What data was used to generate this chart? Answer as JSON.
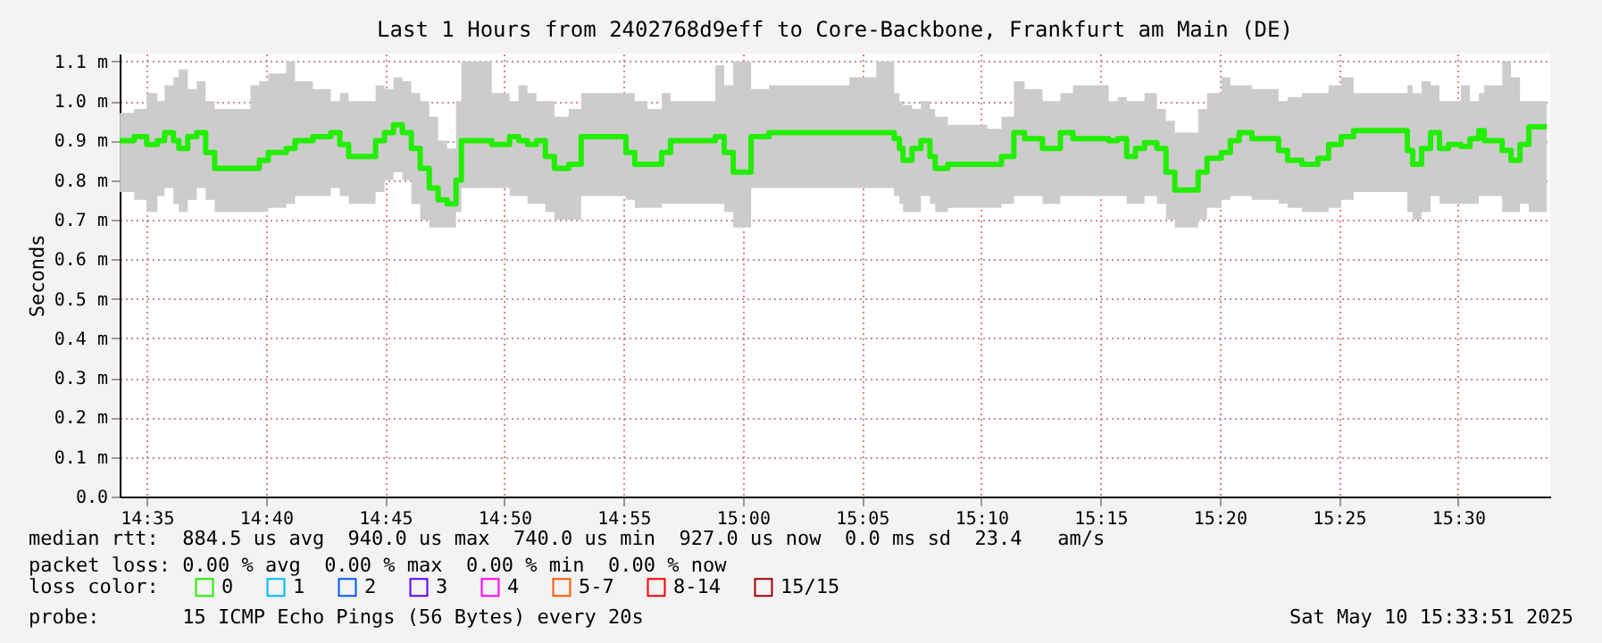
{
  "chart_data": {
    "type": "step",
    "title": "Last 1 Hours from 2402768d9eff to Core-Backbone, Frankfurt am Main (DE)",
    "ylabel": "Seconds",
    "legend_title": "loss color:",
    "legend": "bottom",
    "grid": true,
    "x": [
      14.5645,
      14.5745,
      14.5833,
      14.5908,
      14.5958,
      14.602,
      14.6058,
      14.612,
      14.6183,
      14.6245,
      14.6308,
      14.6558,
      14.662,
      14.6683,
      14.6808,
      14.687,
      14.6995,
      14.712,
      14.7183,
      14.7245,
      14.737,
      14.7433,
      14.7495,
      14.7558,
      14.762,
      14.7683,
      14.7745,
      14.7808,
      14.787,
      14.7933,
      14.7995,
      14.8033,
      14.8245,
      14.837,
      14.8433,
      14.8495,
      14.8558,
      14.862,
      14.8683,
      14.8783,
      14.887,
      14.9183,
      14.9245,
      14.9333,
      14.9433,
      14.9495,
      14.9808,
      14.987,
      14.9933,
      15.0058,
      15.0183,
      15.0745,
      15.0933,
      15.1058,
      15.1095,
      15.112,
      15.1183,
      15.1245,
      15.1308,
      15.1345,
      15.1433,
      15.1708,
      15.1808,
      15.1895,
      15.197,
      15.2095,
      15.222,
      15.2308,
      15.2558,
      15.262,
      15.2683,
      15.2745,
      15.2808,
      15.2895,
      15.2958,
      15.302,
      15.3183,
      15.3245,
      15.3345,
      15.3408,
      15.347,
      15.3558,
      15.3745,
      15.3808,
      15.3908,
      15.402,
      15.4095,
      15.4183,
      15.427,
      15.4645,
      15.4683,
      15.4745,
      15.4808,
      15.487,
      15.4933,
      15.502,
      15.5083,
      15.5145,
      15.5183,
      15.5308,
      15.537,
      15.5433,
      15.5495,
      15.562
    ],
    "series": [
      {
        "name": "0",
        "color": "#22ee00",
        "values": [
          0.9,
          0.91,
          0.89,
          0.9,
          0.92,
          0.9,
          0.88,
          0.91,
          0.92,
          0.87,
          0.83,
          0.83,
          0.85,
          0.87,
          0.88,
          0.9,
          0.91,
          0.92,
          0.89,
          0.86,
          0.86,
          0.9,
          0.92,
          0.94,
          0.92,
          0.88,
          0.83,
          0.78,
          0.75,
          0.74,
          0.8,
          0.9,
          0.89,
          0.91,
          0.9,
          0.89,
          0.9,
          0.86,
          0.83,
          0.84,
          0.91,
          0.87,
          0.84,
          0.84,
          0.87,
          0.9,
          0.91,
          0.87,
          0.82,
          0.91,
          0.92,
          0.92,
          0.92,
          0.905,
          0.88,
          0.85,
          0.88,
          0.9,
          0.86,
          0.83,
          0.84,
          0.84,
          0.86,
          0.92,
          0.905,
          0.88,
          0.92,
          0.905,
          0.9,
          0.905,
          0.86,
          0.88,
          0.895,
          0.88,
          0.82,
          0.775,
          0.82,
          0.855,
          0.87,
          0.9,
          0.92,
          0.905,
          0.875,
          0.85,
          0.84,
          0.855,
          0.89,
          0.91,
          0.925,
          0.875,
          0.84,
          0.88,
          0.92,
          0.88,
          0.89,
          0.885,
          0.905,
          0.925,
          0.9,
          0.875,
          0.85,
          0.89,
          0.935,
          0.935
        ],
        "lower": [
          0.77,
          0.75,
          0.72,
          0.76,
          0.78,
          0.74,
          0.72,
          0.75,
          0.78,
          0.75,
          0.72,
          0.72,
          0.72,
          0.73,
          0.74,
          0.76,
          0.76,
          0.78,
          0.76,
          0.74,
          0.74,
          0.77,
          0.8,
          0.82,
          0.8,
          0.74,
          0.7,
          0.68,
          0.68,
          0.68,
          0.72,
          0.78,
          0.78,
          0.76,
          0.76,
          0.74,
          0.74,
          0.72,
          0.7,
          0.7,
          0.76,
          0.75,
          0.73,
          0.73,
          0.74,
          0.74,
          0.74,
          0.72,
          0.68,
          0.78,
          0.78,
          0.78,
          0.78,
          0.76,
          0.74,
          0.72,
          0.72,
          0.76,
          0.74,
          0.72,
          0.73,
          0.73,
          0.74,
          0.76,
          0.76,
          0.74,
          0.76,
          0.76,
          0.76,
          0.76,
          0.74,
          0.74,
          0.76,
          0.74,
          0.7,
          0.68,
          0.7,
          0.73,
          0.75,
          0.76,
          0.76,
          0.75,
          0.74,
          0.73,
          0.72,
          0.72,
          0.73,
          0.75,
          0.77,
          0.72,
          0.7,
          0.72,
          0.76,
          0.74,
          0.74,
          0.74,
          0.74,
          0.76,
          0.76,
          0.72,
          0.72,
          0.74,
          0.72,
          0.72
        ],
        "upper": [
          0.97,
          0.98,
          1.02,
          1.0,
          1.04,
          1.06,
          1.08,
          1.03,
          1.05,
          1.0,
          0.98,
          1.04,
          1.05,
          1.07,
          1.1,
          1.05,
          1.03,
          1.0,
          1.02,
          1.0,
          1.0,
          1.04,
          1.03,
          1.06,
          1.05,
          1.02,
          1.0,
          0.96,
          0.9,
          0.88,
          1.0,
          1.1,
          1.02,
          1.0,
          1.04,
          1.02,
          1.0,
          1.0,
          0.96,
          0.98,
          1.02,
          1.02,
          1.0,
          0.98,
          1.02,
          1.0,
          1.09,
          1.04,
          1.1,
          1.03,
          1.04,
          1.06,
          1.1,
          1.02,
          1.0,
          0.99,
          0.98,
          1.0,
          0.98,
          0.96,
          0.94,
          0.93,
          0.96,
          1.05,
          1.03,
          1.0,
          1.02,
          1.04,
          1.0,
          1.01,
          1.0,
          1.0,
          1.02,
          0.98,
          0.95,
          0.92,
          0.98,
          1.02,
          1.06,
          1.04,
          1.04,
          1.03,
          1.0,
          1.01,
          1.02,
          1.02,
          1.04,
          1.06,
          1.02,
          1.04,
          1.02,
          1.05,
          1.04,
          1.0,
          1.0,
          1.04,
          1.0,
          1.02,
          1.04,
          1.1,
          1.06,
          1.0,
          1.0,
          1.0
        ]
      },
      {
        "name": "1",
        "color": "#00b8ff",
        "values": [
          null,
          null,
          null,
          null,
          null,
          null,
          null,
          null,
          null,
          null,
          null,
          null,
          null,
          null,
          null,
          null,
          null,
          null,
          null,
          null,
          null,
          null,
          null,
          null,
          null,
          null,
          null,
          null,
          null,
          null,
          null,
          null,
          null,
          null,
          null,
          null,
          null,
          null,
          null,
          null,
          null,
          null,
          null,
          null,
          null,
          null,
          null,
          null,
          null,
          null,
          null,
          null,
          null,
          null,
          null,
          null,
          null,
          null,
          null,
          null,
          null,
          null,
          null,
          null,
          null,
          null,
          null,
          null,
          null,
          null,
          null,
          null,
          null,
          null,
          null,
          null,
          null,
          null,
          null,
          null,
          null,
          null,
          null,
          null,
          null,
          null,
          null,
          null,
          null,
          null,
          null,
          null,
          null,
          null,
          null,
          null,
          null,
          null,
          null,
          null,
          null,
          null,
          null,
          null
        ]
      },
      {
        "name": "2",
        "color": "#0059ff",
        "values": [
          null,
          null,
          null,
          null,
          null,
          null,
          null,
          null,
          null,
          null,
          null,
          null,
          null,
          null,
          null,
          null,
          null,
          null,
          null,
          null,
          null,
          null,
          null,
          null,
          null,
          null,
          null,
          null,
          null,
          null,
          null,
          null,
          null,
          null,
          null,
          null,
          null,
          null,
          null,
          null,
          null,
          null,
          null,
          null,
          null,
          null,
          null,
          null,
          null,
          null,
          null,
          null,
          null,
          null,
          null,
          null,
          null,
          null,
          null,
          null,
          null,
          null,
          null,
          null,
          null,
          null,
          null,
          null,
          null,
          null,
          null,
          null,
          null,
          null,
          null,
          null,
          null,
          null,
          null,
          null,
          null,
          null,
          null,
          null,
          null,
          null,
          null,
          null,
          null,
          null,
          null,
          null,
          null,
          null,
          null,
          null,
          null,
          null,
          null,
          null,
          null,
          null,
          null,
          null
        ]
      },
      {
        "name": "3",
        "color": "#5e00ff",
        "values": [
          null,
          null,
          null,
          null,
          null,
          null,
          null,
          null,
          null,
          null,
          null,
          null,
          null,
          null,
          null,
          null,
          null,
          null,
          null,
          null,
          null,
          null,
          null,
          null,
          null,
          null,
          null,
          null,
          null,
          null,
          null,
          null,
          null,
          null,
          null,
          null,
          null,
          null,
          null,
          null,
          null,
          null,
          null,
          null,
          null,
          null,
          null,
          null,
          null,
          null,
          null,
          null,
          null,
          null,
          null,
          null,
          null,
          null,
          null,
          null,
          null,
          null,
          null,
          null,
          null,
          null,
          null,
          null,
          null,
          null,
          null,
          null,
          null,
          null,
          null,
          null,
          null,
          null,
          null,
          null,
          null,
          null,
          null,
          null,
          null,
          null,
          null,
          null,
          null,
          null,
          null,
          null,
          null,
          null,
          null,
          null,
          null,
          null,
          null,
          null,
          null,
          null,
          null,
          null
        ]
      },
      {
        "name": "4",
        "color": "#ff00ff",
        "values": [
          null,
          null,
          null,
          null,
          null,
          null,
          null,
          null,
          null,
          null,
          null,
          null,
          null,
          null,
          null,
          null,
          null,
          null,
          null,
          null,
          null,
          null,
          null,
          null,
          null,
          null,
          null,
          null,
          null,
          null,
          null,
          null,
          null,
          null,
          null,
          null,
          null,
          null,
          null,
          null,
          null,
          null,
          null,
          null,
          null,
          null,
          null,
          null,
          null,
          null,
          null,
          null,
          null,
          null,
          null,
          null,
          null,
          null,
          null,
          null,
          null,
          null,
          null,
          null,
          null,
          null,
          null,
          null,
          null,
          null,
          null,
          null,
          null,
          null,
          null,
          null,
          null,
          null,
          null,
          null,
          null,
          null,
          null,
          null,
          null,
          null,
          null,
          null,
          null,
          null,
          null,
          null,
          null,
          null,
          null,
          null,
          null,
          null,
          null,
          null,
          null,
          null,
          null,
          null
        ]
      },
      {
        "name": "5-7",
        "color": "#ff5500",
        "values": [
          null,
          null,
          null,
          null,
          null,
          null,
          null,
          null,
          null,
          null,
          null,
          null,
          null,
          null,
          null,
          null,
          null,
          null,
          null,
          null,
          null,
          null,
          null,
          null,
          null,
          null,
          null,
          null,
          null,
          null,
          null,
          null,
          null,
          null,
          null,
          null,
          null,
          null,
          null,
          null,
          null,
          null,
          null,
          null,
          null,
          null,
          null,
          null,
          null,
          null,
          null,
          null,
          null,
          null,
          null,
          null,
          null,
          null,
          null,
          null,
          null,
          null,
          null,
          null,
          null,
          null,
          null,
          null,
          null,
          null,
          null,
          null,
          null,
          null,
          null,
          null,
          null,
          null,
          null,
          null,
          null,
          null,
          null,
          null,
          null,
          null,
          null,
          null,
          null,
          null,
          null,
          null,
          null,
          null,
          null,
          null,
          null,
          null,
          null,
          null,
          null,
          null,
          null,
          null
        ]
      },
      {
        "name": "8-14",
        "color": "#ff0000",
        "values": [
          null,
          null,
          null,
          null,
          null,
          null,
          null,
          null,
          null,
          null,
          null,
          null,
          null,
          null,
          null,
          null,
          null,
          null,
          null,
          null,
          null,
          null,
          null,
          null,
          null,
          null,
          null,
          null,
          null,
          null,
          null,
          null,
          null,
          null,
          null,
          null,
          null,
          null,
          null,
          null,
          null,
          null,
          null,
          null,
          null,
          null,
          null,
          null,
          null,
          null,
          null,
          null,
          null,
          null,
          null,
          null,
          null,
          null,
          null,
          null,
          null,
          null,
          null,
          null,
          null,
          null,
          null,
          null,
          null,
          null,
          null,
          null,
          null,
          null,
          null,
          null,
          null,
          null,
          null,
          null,
          null,
          null,
          null,
          null,
          null,
          null,
          null,
          null,
          null,
          null,
          null,
          null,
          null,
          null,
          null,
          null,
          null,
          null,
          null,
          null,
          null,
          null,
          null,
          null
        ]
      },
      {
        "name": "15/15",
        "color": "#a10000",
        "values": [
          null,
          null,
          null,
          null,
          null,
          null,
          null,
          null,
          null,
          null,
          null,
          null,
          null,
          null,
          null,
          null,
          null,
          null,
          null,
          null,
          null,
          null,
          null,
          null,
          null,
          null,
          null,
          null,
          null,
          null,
          null,
          null,
          null,
          null,
          null,
          null,
          null,
          null,
          null,
          null,
          null,
          null,
          null,
          null,
          null,
          null,
          null,
          null,
          null,
          null,
          null,
          null,
          null,
          null,
          null,
          null,
          null,
          null,
          null,
          null,
          null,
          null,
          null,
          null,
          null,
          null,
          null,
          null,
          null,
          null,
          null,
          null,
          null,
          null,
          null,
          null,
          null,
          null,
          null,
          null,
          null,
          null,
          null,
          null,
          null,
          null,
          null,
          null,
          null,
          null,
          null,
          null,
          null,
          null,
          null,
          null,
          null,
          null,
          null,
          null,
          null,
          null,
          null,
          null
        ]
      }
    ],
    "xlim": [
      14.5644,
      15.5644
    ],
    "xticks": [
      {
        "value": 14.58333,
        "label": "14:35"
      },
      {
        "value": 14.66667,
        "label": "14:40"
      },
      {
        "value": 14.75,
        "label": "14:45"
      },
      {
        "value": 14.83333,
        "label": "14:50"
      },
      {
        "value": 14.91667,
        "label": "14:55"
      },
      {
        "value": 15.0,
        "label": "15:00"
      },
      {
        "value": 15.08333,
        "label": "15:05"
      },
      {
        "value": 15.16667,
        "label": "15:10"
      },
      {
        "value": 15.25,
        "label": "15:15"
      },
      {
        "value": 15.33333,
        "label": "15:20"
      },
      {
        "value": 15.41667,
        "label": "15:25"
      },
      {
        "value": 15.5,
        "label": "15:30"
      }
    ],
    "ylim": [
      0,
      1.12
    ],
    "yticks": [
      {
        "value": 0,
        "label": "0.0"
      },
      {
        "value": 0.1,
        "label": "0.1 m"
      },
      {
        "value": 0.2,
        "label": "0.2 m"
      },
      {
        "value": 0.3,
        "label": "0.3 m"
      },
      {
        "value": 0.4,
        "label": "0.4 m"
      },
      {
        "value": 0.5,
        "label": "0.5 m"
      },
      {
        "value": 0.6,
        "label": "0.6 m"
      },
      {
        "value": 0.7,
        "label": "0.7 m"
      },
      {
        "value": 0.8,
        "label": "0.8 m"
      },
      {
        "value": 0.9,
        "label": "0.9 m"
      },
      {
        "value": 1.0,
        "label": "1.0 m"
      },
      {
        "value": 1.1,
        "label": "1.1 m"
      }
    ],
    "annotations": [
      "median rtt:  884.5 us avg  940.0 us max  740.0 us min  927.0 us now  0.0 ms sd  23.4   am/s",
      "packet loss: 0.00 % avg  0.00 % max  0.00 % min  0.00 % now",
      "probe:       15 ICMP Echo Pings (56 Bytes) every 20s",
      "Sat May 10 15:33:51 2025"
    ]
  }
}
